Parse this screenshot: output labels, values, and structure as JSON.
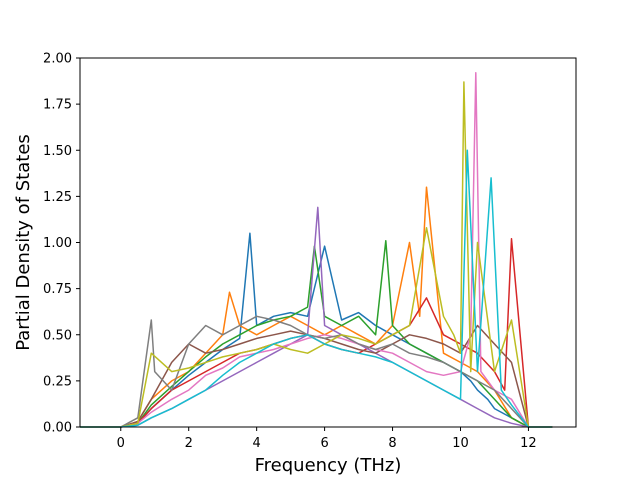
{
  "chart_data": {
    "type": "line",
    "title": "",
    "xlabel": "Frequency (THz)",
    "ylabel": "Partial Density of States",
    "xlim": [
      -1.2,
      13.4
    ],
    "ylim": [
      0,
      2.0
    ],
    "xticks": [
      0,
      2,
      4,
      6,
      8,
      10,
      12
    ],
    "xtick_labels": [
      "0",
      "2",
      "4",
      "6",
      "8",
      "10",
      "12"
    ],
    "yticks": [
      0.0,
      0.25,
      0.5,
      0.75,
      1.0,
      1.25,
      1.5,
      1.75,
      2.0
    ],
    "ytick_labels": [
      "0.00",
      "0.25",
      "0.50",
      "0.75",
      "1.00",
      "1.25",
      "1.50",
      "1.75",
      "2.00"
    ],
    "grid": false,
    "legend": "none",
    "colors": [
      "#1f77b4",
      "#ff7f0e",
      "#2ca02c",
      "#d62728",
      "#9467bd",
      "#8c564b",
      "#e377c2",
      "#7f7f7f",
      "#bcbd22",
      "#17becf"
    ],
    "series": [
      {
        "color": "#1f77b4",
        "x": [
          -1.2,
          0.0,
          0.5,
          0.9,
          1.5,
          2.0,
          2.5,
          3.0,
          3.5,
          3.8,
          4.0,
          4.5,
          5.0,
          5.5,
          6.0,
          6.5,
          7.0,
          7.5,
          8.0,
          8.5,
          9.0,
          9.5,
          10.0,
          10.3,
          10.5,
          10.8,
          11.0,
          11.5,
          12.0,
          12.7
        ],
        "y": [
          0,
          0,
          0.02,
          0.1,
          0.2,
          0.28,
          0.35,
          0.42,
          0.48,
          1.05,
          0.55,
          0.6,
          0.62,
          0.6,
          0.98,
          0.58,
          0.62,
          0.55,
          0.5,
          0.45,
          0.4,
          0.35,
          0.3,
          0.25,
          0.2,
          0.15,
          0.1,
          0.05,
          0,
          0
        ]
      },
      {
        "color": "#ff7f0e",
        "x": [
          -1.2,
          0.0,
          0.5,
          0.9,
          1.5,
          2.0,
          2.5,
          3.0,
          3.2,
          3.5,
          4.0,
          4.5,
          5.0,
          5.5,
          6.0,
          6.5,
          7.0,
          7.5,
          8.0,
          8.5,
          8.8,
          9.0,
          9.5,
          10.0,
          10.5,
          11.0,
          11.5,
          12.0,
          12.7
        ],
        "y": [
          0,
          0,
          0.03,
          0.15,
          0.25,
          0.3,
          0.4,
          0.5,
          0.73,
          0.55,
          0.5,
          0.55,
          0.6,
          0.55,
          0.5,
          0.55,
          0.5,
          0.45,
          0.55,
          1.0,
          0.6,
          1.3,
          0.4,
          0.35,
          0.3,
          0.2,
          0.05,
          0,
          0
        ]
      },
      {
        "color": "#2ca02c",
        "x": [
          -1.2,
          0.0,
          0.5,
          0.9,
          1.5,
          2.0,
          2.5,
          3.0,
          3.5,
          4.0,
          4.5,
          5.0,
          5.5,
          5.7,
          6.0,
          6.5,
          7.0,
          7.5,
          7.8,
          8.0,
          8.5,
          9.0,
          9.5,
          10.0,
          10.5,
          11.0,
          11.5,
          12.0,
          12.7
        ],
        "y": [
          0,
          0,
          0.02,
          0.12,
          0.22,
          0.3,
          0.38,
          0.45,
          0.5,
          0.55,
          0.58,
          0.6,
          0.65,
          0.98,
          0.6,
          0.55,
          0.6,
          0.5,
          1.01,
          0.55,
          0.45,
          0.4,
          0.35,
          0.3,
          0.25,
          0.15,
          0.05,
          0,
          0
        ]
      },
      {
        "color": "#d62728",
        "x": [
          -1.2,
          0.0,
          0.5,
          0.9,
          1.5,
          2.0,
          2.5,
          3.0,
          3.5,
          4.0,
          4.5,
          5.0,
          5.5,
          6.0,
          6.5,
          7.0,
          7.5,
          8.0,
          8.5,
          9.0,
          9.5,
          10.0,
          10.5,
          11.0,
          11.3,
          11.5,
          12.0,
          12.7
        ],
        "y": [
          0,
          0,
          0.02,
          0.1,
          0.2,
          0.25,
          0.3,
          0.35,
          0.4,
          0.42,
          0.45,
          0.48,
          0.5,
          0.45,
          0.42,
          0.4,
          0.45,
          0.5,
          0.55,
          0.7,
          0.5,
          0.45,
          0.4,
          0.3,
          0.2,
          1.02,
          0,
          0
        ]
      },
      {
        "color": "#9467bd",
        "x": [
          -1.2,
          0.0,
          0.5,
          0.9,
          1.5,
          2.0,
          2.5,
          3.0,
          3.5,
          4.0,
          4.5,
          5.0,
          5.5,
          5.8,
          6.0,
          6.5,
          7.0,
          7.5,
          8.0,
          8.5,
          9.0,
          9.5,
          10.0,
          10.5,
          11.0,
          11.5,
          12.0,
          12.7
        ],
        "y": [
          0,
          0,
          0.01,
          0.05,
          0.1,
          0.15,
          0.2,
          0.25,
          0.3,
          0.35,
          0.4,
          0.45,
          0.5,
          1.19,
          0.55,
          0.5,
          0.45,
          0.4,
          0.35,
          0.3,
          0.25,
          0.2,
          0.15,
          0.1,
          0.05,
          0.02,
          0,
          0
        ]
      },
      {
        "color": "#8c564b",
        "x": [
          -1.2,
          0.0,
          0.5,
          0.9,
          1.5,
          2.0,
          2.5,
          3.0,
          3.5,
          4.0,
          4.5,
          5.0,
          5.5,
          6.0,
          6.5,
          7.0,
          7.5,
          8.0,
          8.5,
          9.0,
          9.5,
          10.0,
          10.5,
          11.0,
          11.5,
          12.0,
          12.7
        ],
        "y": [
          0,
          0,
          0.03,
          0.15,
          0.35,
          0.45,
          0.4,
          0.42,
          0.45,
          0.48,
          0.5,
          0.52,
          0.5,
          0.48,
          0.45,
          0.42,
          0.4,
          0.45,
          0.5,
          0.48,
          0.45,
          0.4,
          0.55,
          0.45,
          0.35,
          0,
          0
        ]
      },
      {
        "color": "#e377c2",
        "x": [
          -1.2,
          0.0,
          0.5,
          0.9,
          1.5,
          2.0,
          2.5,
          3.0,
          3.5,
          4.0,
          4.5,
          5.0,
          5.5,
          6.0,
          6.5,
          7.0,
          7.5,
          8.0,
          8.5,
          9.0,
          9.5,
          10.0,
          10.3,
          10.45,
          10.6,
          11.0,
          11.5,
          12.0,
          12.7
        ],
        "y": [
          0,
          0,
          0.02,
          0.08,
          0.15,
          0.2,
          0.28,
          0.32,
          0.38,
          0.4,
          0.42,
          0.45,
          0.48,
          0.5,
          0.48,
          0.45,
          0.42,
          0.4,
          0.35,
          0.3,
          0.28,
          0.3,
          0.5,
          1.92,
          0.3,
          0.2,
          0.15,
          0,
          0
        ]
      },
      {
        "color": "#7f7f7f",
        "x": [
          -1.2,
          0.0,
          0.5,
          0.9,
          1.0,
          1.5,
          2.0,
          2.5,
          3.0,
          3.5,
          4.0,
          4.5,
          5.0,
          5.5,
          6.0,
          6.5,
          7.0,
          7.5,
          8.0,
          8.5,
          9.0,
          9.5,
          10.0,
          10.5,
          11.0,
          11.5,
          12.0,
          12.7
        ],
        "y": [
          0,
          0,
          0.05,
          0.58,
          0.3,
          0.2,
          0.45,
          0.55,
          0.5,
          0.55,
          0.6,
          0.58,
          0.55,
          0.5,
          0.48,
          0.5,
          0.45,
          0.42,
          0.45,
          0.4,
          0.38,
          0.35,
          0.3,
          0.25,
          0.2,
          0.1,
          0,
          0
        ]
      },
      {
        "color": "#bcbd22",
        "x": [
          -1.2,
          0.0,
          0.5,
          0.9,
          1.5,
          2.0,
          2.5,
          3.0,
          3.5,
          4.0,
          4.5,
          5.0,
          5.5,
          6.0,
          6.5,
          7.0,
          7.5,
          8.0,
          8.5,
          9.0,
          9.5,
          9.8,
          10.0,
          10.1,
          10.3,
          10.5,
          11.0,
          11.5,
          12.0,
          12.7
        ],
        "y": [
          0,
          0,
          0.02,
          0.4,
          0.3,
          0.32,
          0.35,
          0.38,
          0.4,
          0.42,
          0.45,
          0.42,
          0.4,
          0.45,
          0.5,
          0.48,
          0.45,
          0.5,
          0.55,
          1.08,
          0.6,
          0.5,
          0.4,
          1.87,
          0.3,
          1.0,
          0.3,
          0.58,
          0,
          0
        ]
      },
      {
        "color": "#17becf",
        "x": [
          -1.2,
          0.0,
          0.5,
          0.9,
          1.5,
          2.0,
          2.5,
          3.0,
          3.5,
          4.0,
          4.5,
          5.0,
          5.5,
          6.0,
          6.5,
          7.0,
          7.5,
          8.0,
          8.5,
          9.0,
          9.5,
          10.0,
          10.2,
          10.5,
          10.9,
          11.2,
          11.5,
          12.0,
          12.7
        ],
        "y": [
          0,
          0,
          0.01,
          0.05,
          0.1,
          0.15,
          0.2,
          0.28,
          0.35,
          0.4,
          0.45,
          0.48,
          0.5,
          0.45,
          0.42,
          0.4,
          0.38,
          0.35,
          0.3,
          0.25,
          0.2,
          0.15,
          1.5,
          0.3,
          1.35,
          0.2,
          0.12,
          0,
          0
        ]
      }
    ]
  }
}
